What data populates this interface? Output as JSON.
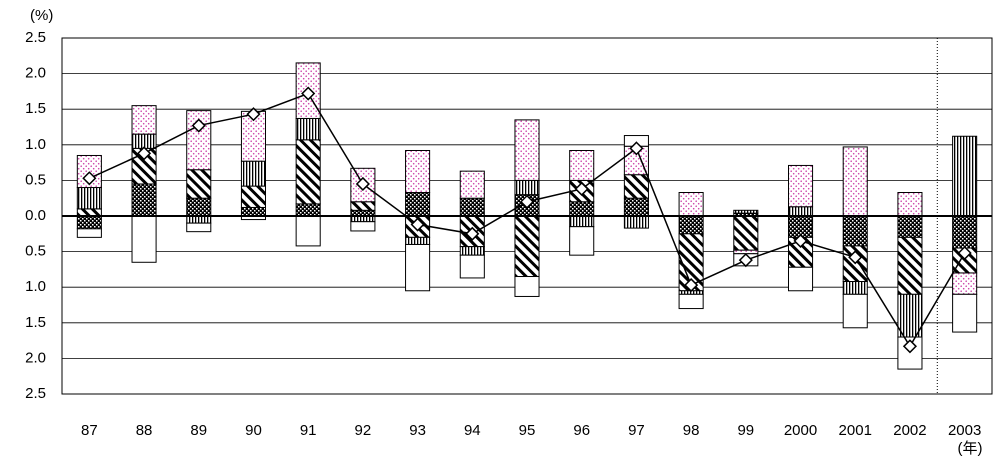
{
  "chart_data": {
    "type": "bar",
    "y_unit": "(%)",
    "x_unit": "(年)",
    "categories": [
      "87",
      "88",
      "89",
      "90",
      "91",
      "92",
      "93",
      "94",
      "95",
      "96",
      "97",
      "98",
      "99",
      "2000",
      "2001",
      "2002",
      "2003"
    ],
    "series": [
      {
        "pattern": "crosshatch",
        "color": "#000000",
        "values": [
          -0.18,
          0.45,
          0.25,
          0.12,
          0.17,
          0.08,
          0.33,
          0.25,
          0.3,
          0.2,
          0.25,
          -0.25,
          0.04,
          -0.3,
          -0.42,
          -0.3,
          -0.45
        ]
      },
      {
        "pattern": "diagonal",
        "color": "#000000",
        "values": [
          0.1,
          0.5,
          0.4,
          0.3,
          0.9,
          0.12,
          -0.3,
          -0.43,
          -0.85,
          0.3,
          0.33,
          -0.8,
          -0.48,
          -0.42,
          -0.5,
          -0.8,
          -0.35
        ]
      },
      {
        "pattern": "vertical",
        "color": "#000000",
        "values": [
          0.3,
          0.2,
          -0.1,
          0.35,
          0.3,
          -0.08,
          -0.1,
          -0.12,
          0.2,
          -0.15,
          -0.17,
          -0.05,
          0.04,
          0.13,
          -0.18,
          -0.6,
          1.12
        ]
      },
      {
        "pattern": "dots",
        "color": "#cc44aa",
        "values": [
          0.45,
          0.4,
          0.83,
          0.7,
          0.78,
          0.47,
          0.59,
          0.38,
          0.85,
          0.42,
          0.4,
          0.33,
          -0.05,
          0.58,
          0.97,
          0.33,
          -0.3
        ]
      },
      {
        "pattern": "white",
        "color": "#ffffff",
        "values": [
          -0.12,
          -0.65,
          -0.12,
          -0.05,
          -0.42,
          -0.13,
          -0.65,
          -0.32,
          -0.28,
          -0.4,
          0.15,
          -0.2,
          -0.17,
          -0.33,
          -0.47,
          -0.45,
          -0.53
        ]
      }
    ],
    "total": {
      "type": "line",
      "color": "#000000",
      "marker": "diamond",
      "values": [
        0.53,
        0.88,
        1.27,
        1.43,
        1.72,
        0.45,
        -0.12,
        -0.25,
        0.2,
        0.38,
        0.95,
        -0.97,
        -0.62,
        -0.35,
        -0.58,
        -1.83,
        -0.52
      ]
    },
    "ylim": [
      -2.5,
      2.5
    ],
    "yticks": [
      {
        "value": -2.5,
        "label": "2.5"
      },
      {
        "value": -2.0,
        "label": "2.0"
      },
      {
        "value": -1.5,
        "label": "1.5"
      },
      {
        "value": -1.0,
        "label": "1.0"
      },
      {
        "value": -0.5,
        "label": "0.5"
      },
      {
        "value": 0,
        "label": "0.0"
      },
      {
        "value": 0.5,
        "label": "0.5"
      },
      {
        "value": 1.0,
        "label": "1.0"
      },
      {
        "value": 1.5,
        "label": "1.5"
      },
      {
        "value": 2.0,
        "label": "2.0"
      },
      {
        "value": 2.5,
        "label": "2.5"
      }
    ],
    "grid": true
  }
}
